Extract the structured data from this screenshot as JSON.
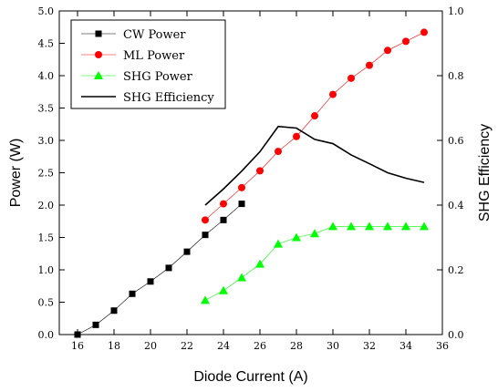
{
  "chart_data": {
    "type": "line",
    "xlabel": "Diode Current (A)",
    "ylabel": "Power (W)",
    "y2label": "SHG Efficiency",
    "xlim": [
      15,
      36
    ],
    "ylim": [
      0,
      5
    ],
    "y2lim": [
      0,
      1
    ],
    "xticks": [
      "16",
      "18",
      "20",
      "22",
      "24",
      "26",
      "28",
      "30",
      "32",
      "34",
      "36"
    ],
    "yticks": [
      "0.0",
      "0.5",
      "1.0",
      "1.5",
      "2.0",
      "2.5",
      "3.0",
      "3.5",
      "4.0",
      "4.5",
      "5.0"
    ],
    "y2ticks": [
      "0.0",
      "0.2",
      "0.4",
      "0.6",
      "0.8",
      "1.0"
    ],
    "grid": false,
    "legend_position": "top-left",
    "series": [
      {
        "name": "CW Power",
        "axis": "left",
        "marker": "square",
        "color": "#000000",
        "x": [
          16,
          17,
          18,
          19,
          20,
          21,
          22,
          23,
          24,
          25
        ],
        "values": [
          0.0,
          0.15,
          0.37,
          0.63,
          0.82,
          1.03,
          1.28,
          1.54,
          1.77,
          2.02
        ]
      },
      {
        "name": "ML Power",
        "axis": "left",
        "marker": "circle",
        "color": "#ff0000",
        "x": [
          23,
          24,
          25,
          26,
          27,
          28,
          29,
          30,
          31,
          32,
          33,
          34,
          35
        ],
        "values": [
          1.77,
          2.02,
          2.27,
          2.53,
          2.83,
          3.06,
          3.38,
          3.71,
          3.96,
          4.16,
          4.39,
          4.53,
          4.67
        ]
      },
      {
        "name": "SHG Power",
        "axis": "left",
        "marker": "triangle",
        "color": "#00ff00",
        "x": [
          23,
          24,
          25,
          26,
          27,
          28,
          29,
          30,
          31,
          32,
          33,
          34,
          35
        ],
        "values": [
          0.53,
          0.68,
          0.88,
          1.09,
          1.4,
          1.5,
          1.56,
          1.67,
          1.67,
          1.67,
          1.67,
          1.67,
          1.67
        ]
      },
      {
        "name": "SHG Efficiency",
        "axis": "right",
        "marker": "none",
        "color": "#000000",
        "x": [
          23,
          24,
          25,
          26,
          27,
          28,
          29,
          30,
          31,
          32,
          33,
          34,
          35
        ],
        "values": [
          0.4,
          0.45,
          0.505,
          0.565,
          0.643,
          0.638,
          0.603,
          0.59,
          0.555,
          0.528,
          0.5,
          0.483,
          0.47
        ]
      }
    ]
  }
}
